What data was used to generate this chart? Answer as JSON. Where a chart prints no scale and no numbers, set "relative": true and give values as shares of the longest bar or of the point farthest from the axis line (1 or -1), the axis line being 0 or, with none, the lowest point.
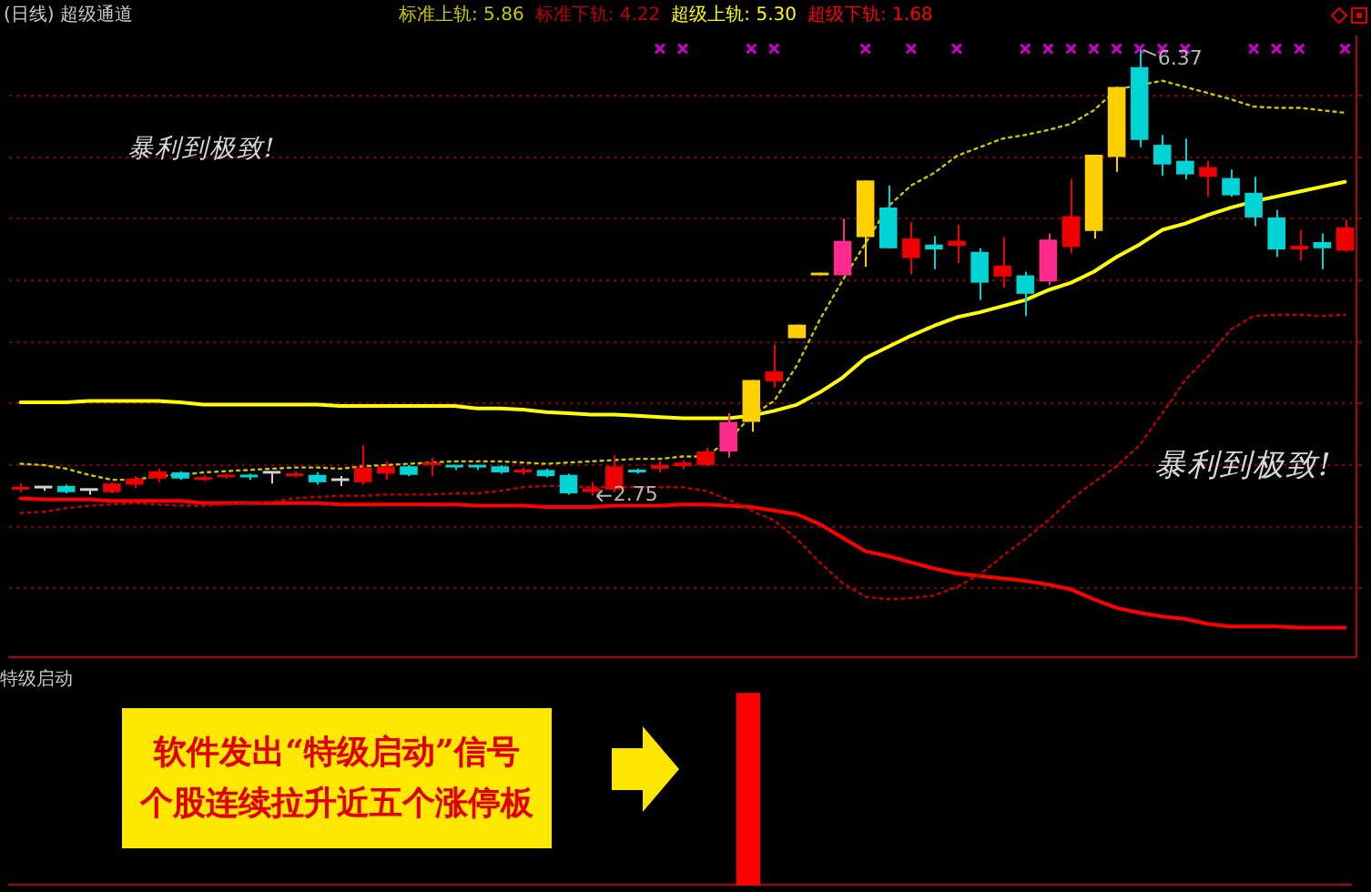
{
  "chart_data": [
    {
      "type": "candlestick",
      "title": "(日线) 超级通道",
      "categories": [
        null,
        null,
        null,
        null,
        null,
        null,
        null,
        null,
        null,
        null,
        null,
        null,
        null,
        null,
        null,
        null,
        null,
        null,
        null,
        null,
        null,
        null,
        null,
        null,
        null,
        null,
        null,
        null,
        null,
        null,
        null,
        null,
        null,
        null,
        null,
        null,
        null,
        null,
        null,
        null,
        null,
        null,
        null,
        null,
        null,
        null,
        null,
        null,
        null,
        null,
        null,
        null,
        null,
        null,
        null,
        null,
        null,
        null,
        null
      ],
      "ohlc": [
        [
          2.8,
          2.85,
          2.78,
          2.82
        ],
        [
          2.81,
          2.83,
          2.79,
          2.81
        ],
        [
          2.83,
          2.84,
          2.77,
          2.78
        ],
        [
          2.79,
          2.8,
          2.76,
          2.79
        ],
        [
          2.78,
          2.86,
          2.77,
          2.85
        ],
        [
          2.84,
          2.91,
          2.81,
          2.89
        ],
        [
          2.89,
          2.97,
          2.86,
          2.95
        ],
        [
          2.94,
          2.95,
          2.88,
          2.89
        ],
        [
          2.88,
          2.92,
          2.87,
          2.9
        ],
        [
          2.9,
          2.93,
          2.89,
          2.92
        ],
        [
          2.92,
          2.93,
          2.88,
          2.9
        ],
        [
          2.93,
          2.94,
          2.85,
          2.93
        ],
        [
          2.91,
          2.95,
          2.9,
          2.93
        ],
        [
          2.92,
          2.94,
          2.84,
          2.86
        ],
        [
          2.87,
          2.91,
          2.83,
          2.87
        ],
        [
          2.86,
          3.16,
          2.84,
          2.98
        ],
        [
          2.93,
          3.03,
          2.88,
          2.99
        ],
        [
          2.99,
          3.0,
          2.91,
          2.92
        ],
        [
          3.0,
          3.06,
          2.91,
          3.02
        ],
        [
          2.99,
          3.0,
          2.96,
          2.98
        ],
        [
          2.99,
          3.0,
          2.96,
          2.98
        ],
        [
          2.99,
          3.0,
          2.93,
          2.94
        ],
        [
          2.94,
          2.98,
          2.92,
          2.96
        ],
        [
          2.96,
          2.97,
          2.9,
          2.91
        ],
        [
          2.92,
          2.93,
          2.76,
          2.77
        ],
        [
          2.78,
          2.86,
          2.75,
          2.81
        ],
        [
          2.8,
          3.08,
          2.78,
          2.99
        ],
        [
          2.96,
          2.97,
          2.93,
          2.94
        ],
        [
          2.97,
          3.03,
          2.94,
          3.0
        ],
        [
          2.99,
          3.04,
          2.97,
          3.02
        ],
        [
          3.0,
          3.14,
          2.99,
          3.11
        ],
        [
          3.11,
          3.42,
          3.06,
          3.35
        ],
        [
          3.35,
          3.69,
          3.27,
          3.69
        ],
        [
          3.68,
          3.98,
          3.63,
          3.76
        ],
        [
          4.03,
          4.14,
          4.03,
          4.14
        ],
        [
          4.54,
          4.56,
          4.54,
          4.56
        ],
        [
          4.54,
          5.0,
          4.54,
          4.82
        ],
        [
          4.85,
          5.31,
          4.61,
          5.31
        ],
        [
          5.09,
          5.27,
          4.76,
          4.76
        ],
        [
          4.68,
          4.97,
          4.55,
          4.84
        ],
        [
          4.79,
          4.86,
          4.59,
          4.75
        ],
        [
          4.78,
          4.95,
          4.64,
          4.82
        ],
        [
          4.73,
          4.76,
          4.34,
          4.48
        ],
        [
          4.53,
          4.85,
          4.44,
          4.62
        ],
        [
          4.54,
          4.57,
          4.21,
          4.39
        ],
        [
          4.49,
          4.88,
          4.46,
          4.83
        ],
        [
          4.77,
          5.32,
          4.72,
          5.02
        ],
        [
          4.9,
          5.52,
          4.84,
          5.52
        ],
        [
          5.5,
          6.07,
          5.38,
          6.07
        ],
        [
          6.23,
          6.37,
          5.58,
          5.64
        ],
        [
          5.6,
          5.68,
          5.35,
          5.44
        ],
        [
          5.47,
          5.65,
          5.32,
          5.36
        ],
        [
          5.34,
          5.47,
          5.18,
          5.42
        ],
        [
          5.33,
          5.4,
          5.18,
          5.19
        ],
        [
          5.21,
          5.34,
          4.94,
          5.01
        ],
        [
          5.01,
          5.07,
          4.69,
          4.75
        ],
        [
          4.75,
          4.91,
          4.66,
          4.78
        ],
        [
          4.81,
          4.88,
          4.59,
          4.76
        ],
        [
          4.74,
          4.99,
          4.73,
          4.93
        ]
      ],
      "colors": [
        "#ee0000",
        "#d0d0d0",
        "#00d4d4",
        "#d0d0d0",
        "#ee0000",
        "#ee0000",
        "#ee0000",
        "#00d4d4",
        "#ee0000",
        "#ee0000",
        "#00d4d4",
        "#d0d0d0",
        "#ee0000",
        "#00d4d4",
        "#d0d0d0",
        "#ee0000",
        "#ee0000",
        "#00d4d4",
        "#ee0000",
        "#00d4d4",
        "#00d4d4",
        "#00d4d4",
        "#ee0000",
        "#00d4d4",
        "#00d4d4",
        "#ee0000",
        "#ee0000",
        "#00d4d4",
        "#ee0000",
        "#ee0000",
        "#ee0000",
        "#ff2a8c",
        "#ffd000",
        "#ee0000",
        "#ffd000",
        "#ffd000",
        "#ff2a8c",
        "#ffd000",
        "#00d4d4",
        "#ee0000",
        "#00d4d4",
        "#ee0000",
        "#00d4d4",
        "#ee0000",
        "#00d4d4",
        "#ff2a8c",
        "#ee0000",
        "#ffd000",
        "#ffd000",
        "#00d4d4",
        "#00d4d4",
        "#00d4d4",
        "#ee0000",
        "#00d4d4",
        "#00d4d4",
        "#00d4d4",
        "#ee0000",
        "#00d4d4",
        "#ee0000"
      ],
      "series": [
        {
          "name": "标准上轨: 5.86",
          "type": "line",
          "color": "#c8c800",
          "line_style": "dotted",
          "values": [
            3.01,
            3.0,
            2.97,
            2.92,
            2.88,
            2.88,
            2.91,
            2.92,
            2.94,
            2.95,
            2.96,
            2.97,
            2.98,
            2.98,
            2.97,
            2.99,
            3.0,
            3.01,
            3.02,
            3.03,
            3.03,
            3.03,
            3.02,
            3.01,
            3.02,
            3.03,
            3.04,
            3.05,
            3.05,
            3.07,
            3.07,
            3.2,
            3.4,
            3.52,
            3.81,
            4.18,
            4.5,
            null,
            5.1,
            5.27,
            5.37,
            5.51,
            5.58,
            5.65,
            5.68,
            5.72,
            5.77,
            5.88,
            6.05,
            null,
            6.12,
            6.07,
            6.02,
            5.97,
            5.91,
            5.9,
            5.9,
            5.88,
            5.86
          ]
        },
        {
          "name": "标准下轨: 4.22",
          "type": "line",
          "color": "#c00000",
          "line_style": "dotted",
          "values": [
            2.61,
            2.62,
            2.65,
            2.67,
            2.68,
            2.69,
            2.68,
            2.67,
            2.67,
            2.68,
            2.69,
            2.7,
            2.73,
            2.74,
            2.75,
            2.75,
            2.76,
            2.76,
            2.76,
            2.77,
            2.77,
            2.79,
            2.82,
            2.83,
            2.83,
            2.82,
            2.82,
            2.82,
            2.82,
            2.82,
            2.79,
            2.72,
            2.63,
            2.55,
            2.4,
            2.21,
            2.04,
            1.93,
            1.91,
            1.92,
            1.94,
            2.01,
            2.11,
            2.26,
            2.4,
            2.55,
            2.72,
            2.86,
            2.99,
            3.16,
            3.42,
            3.69,
            3.88,
            4.1,
            4.21,
            4.22,
            4.22,
            4.21,
            4.22
          ]
        },
        {
          "name": "超级上轨: 5.30",
          "type": "line",
          "color": "#ffff00",
          "line_style": "solid",
          "values": [
            3.51,
            3.51,
            3.51,
            3.52,
            3.52,
            3.52,
            3.52,
            3.51,
            3.49,
            3.49,
            3.49,
            3.49,
            3.49,
            3.49,
            3.48,
            3.48,
            3.48,
            3.48,
            3.48,
            3.48,
            3.46,
            3.46,
            3.45,
            3.43,
            3.42,
            3.41,
            3.41,
            3.4,
            3.39,
            3.38,
            3.38,
            3.38,
            3.4,
            3.44,
            3.49,
            3.59,
            3.71,
            3.87,
            3.96,
            4.05,
            4.13,
            4.2,
            4.24,
            4.29,
            4.34,
            4.42,
            4.48,
            4.57,
            4.69,
            4.79,
            4.91,
            4.96,
            5.03,
            5.09,
            5.14,
            5.18,
            5.22,
            5.26,
            5.3
          ]
        },
        {
          "name": "超级下轨: 1.68",
          "type": "line",
          "color": "#ff0000",
          "line_style": "solid",
          "values": [
            2.73,
            2.72,
            2.72,
            2.72,
            2.71,
            2.71,
            2.71,
            2.71,
            2.69,
            2.69,
            2.69,
            2.69,
            2.69,
            2.69,
            2.68,
            2.68,
            2.68,
            2.68,
            2.68,
            2.68,
            2.67,
            2.67,
            2.67,
            2.66,
            2.66,
            2.66,
            2.67,
            2.67,
            2.67,
            2.68,
            2.68,
            2.67,
            2.66,
            2.63,
            2.6,
            2.52,
            2.41,
            2.3,
            2.26,
            2.21,
            2.16,
            2.12,
            2.1,
            2.08,
            2.06,
            2.03,
            1.99,
            1.91,
            1.84,
            1.8,
            1.77,
            1.75,
            1.71,
            1.69,
            1.69,
            1.69,
            1.68,
            1.68,
            1.68
          ]
        },
        {
          "type": "scatter",
          "color": "#cc00cc",
          "marker": "cross",
          "values": [
            null,
            null,
            null,
            null,
            null,
            null,
            null,
            null,
            null,
            null,
            null,
            null,
            null,
            null,
            null,
            null,
            null,
            null,
            null,
            null,
            null,
            null,
            null,
            null,
            null,
            null,
            null,
            null,
            6.38,
            6.38,
            null,
            null,
            6.38,
            6.38,
            null,
            null,
            null,
            6.38,
            null,
            6.38,
            null,
            6.38,
            null,
            null,
            6.38,
            6.38,
            6.38,
            6.38,
            6.38,
            6.38,
            6.38,
            6.38,
            null,
            null,
            6.38,
            6.38,
            6.38,
            null,
            6.38
          ]
        }
      ],
      "ylim": [
        1.44,
        6.48
      ],
      "yticks": [
        {
          "value": 2,
          "label": null
        },
        {
          "value": 2.5,
          "label": null
        },
        {
          "value": 3,
          "label": null
        },
        {
          "value": 3.5,
          "label": null
        },
        {
          "value": 4,
          "label": null
        },
        {
          "value": 4.5,
          "label": null
        },
        {
          "value": 5,
          "label": null
        },
        {
          "value": 5.5,
          "label": null
        },
        {
          "value": 6,
          "label": null
        }
      ],
      "tick_labels": false,
      "grid": "y",
      "marker": "none",
      "annotations": [
        "暴利到极致!",
        {
          "text": "6.37",
          "y": 6.37
        },
        {
          "text": "2.75",
          "y": 2.75
        },
        "暴利到极致!"
      ]
    },
    {
      "type": "bar",
      "title": "特级启动",
      "categories": [
        null,
        null,
        null,
        null,
        null,
        null,
        null,
        null,
        null,
        null,
        null,
        null,
        null,
        null,
        null,
        null,
        null,
        null,
        null,
        null,
        null,
        null,
        null,
        null,
        null,
        null,
        null,
        null,
        null,
        null,
        null,
        null,
        null,
        null,
        null,
        null,
        null,
        null,
        null,
        null,
        null,
        null,
        null,
        null,
        null,
        null,
        null,
        null,
        null,
        null,
        null,
        null,
        null,
        null,
        null,
        null,
        null,
        null,
        null
      ],
      "values": [
        null,
        null,
        null,
        null,
        null,
        null,
        null,
        null,
        null,
        null,
        null,
        null,
        null,
        null,
        null,
        null,
        null,
        null,
        null,
        null,
        null,
        null,
        null,
        null,
        null,
        null,
        null,
        null,
        null,
        null,
        null,
        null,
        1,
        null,
        null,
        null,
        null,
        null,
        null,
        null,
        null,
        null,
        null,
        null,
        null,
        null,
        null,
        null,
        null,
        null,
        null,
        null,
        null,
        null,
        null,
        null,
        null,
        null,
        null
      ],
      "color": "#ff0000",
      "relative": true,
      "tick_labels": false,
      "annotations": [
        "软件发出“特级启动”信号",
        "个股连续拉升近五个涨停板"
      ]
    }
  ]
}
